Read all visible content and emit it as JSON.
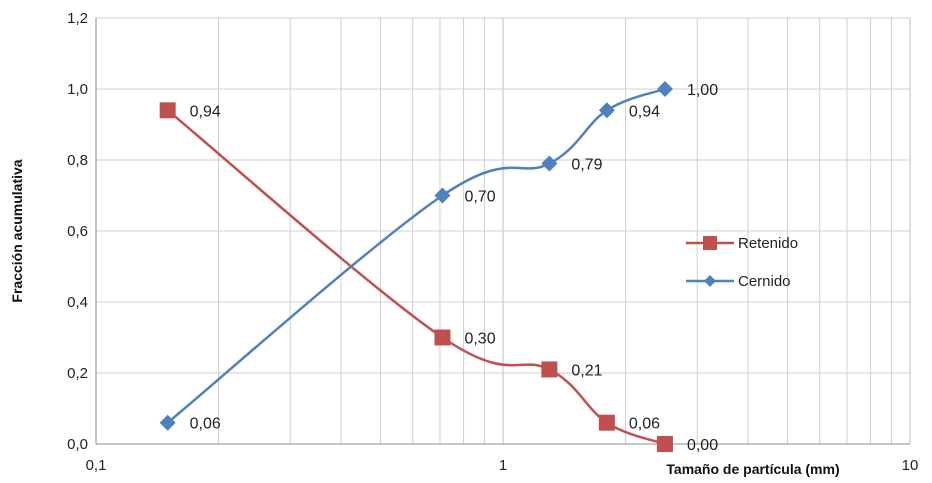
{
  "chart_data": {
    "type": "line",
    "title": "",
    "xlabel": "Tamaño de partícula (mm)",
    "ylabel": "Fracción acumulativa",
    "x_scale": "log",
    "xlim": [
      0.1,
      10
    ],
    "ylim": [
      0,
      1.2
    ],
    "x_ticks": [
      "0,1",
      "1",
      "10"
    ],
    "y_ticks": [
      "0,0",
      "0,2",
      "0,4",
      "0,6",
      "0,8",
      "1,0",
      "1,2"
    ],
    "grid": true,
    "legend_position": "right",
    "series": [
      {
        "name": "Retenido",
        "color": "#c0504d",
        "marker": "square",
        "x": [
          0.15,
          0.71,
          1.3,
          1.8,
          2.5
        ],
        "y": [
          0.94,
          0.3,
          0.21,
          0.06,
          0.0
        ],
        "labels": [
          "0,94",
          "0,30",
          "0,21",
          "0,06",
          "0,00"
        ]
      },
      {
        "name": "Cernido",
        "color": "#4f81bd",
        "marker": "diamond",
        "x": [
          0.15,
          0.71,
          1.3,
          1.8,
          2.5
        ],
        "y": [
          0.06,
          0.7,
          0.79,
          0.94,
          1.0
        ],
        "labels": [
          "0,06",
          "0,70",
          "0,79",
          "0,94",
          "1,00"
        ]
      }
    ]
  }
}
